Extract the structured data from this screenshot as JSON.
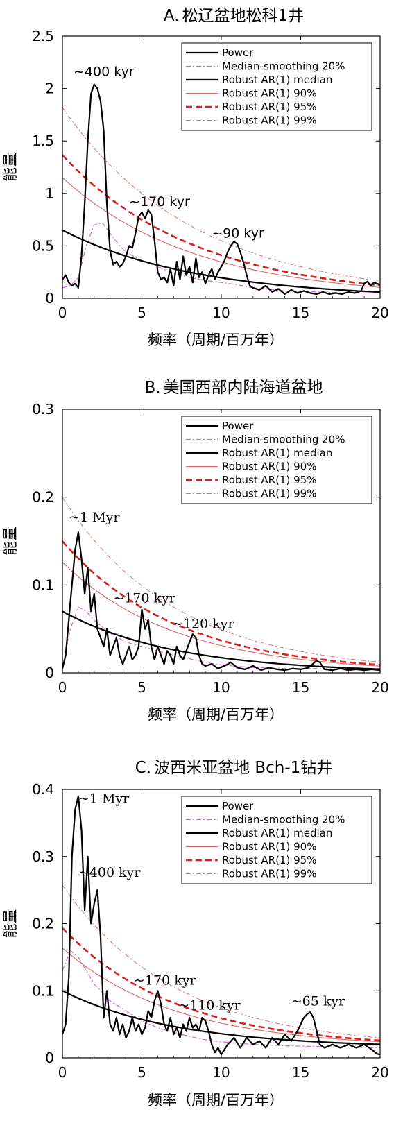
{
  "chart_data": [
    {
      "id": "A",
      "type": "line",
      "title_letter": "A.",
      "title": "松辽盆地松科1井",
      "xlabel": "频率（周期/百万年）",
      "ylabel": "能量",
      "xlim": [
        0,
        20
      ],
      "ylim": [
        0,
        2.5
      ],
      "xticks": [
        0,
        5,
        10,
        15,
        20
      ],
      "yticks": [
        0,
        0.5,
        1,
        1.5,
        2,
        2.5
      ],
      "ytick_labels": [
        "0",
        "0.5",
        "1",
        "1.5",
        "2",
        "2.5"
      ],
      "grid": false,
      "legend_position": "top-right",
      "legend": [
        "Power",
        "Median-smoothing 20%",
        "Robust AR(1) median",
        "Robust AR(1) 90%",
        "Robust AR(1) 95%",
        "Robust AR(1) 99%"
      ],
      "ar_median_at_zero": 0.65,
      "ar_decay": 0.12,
      "ar_floor": 0.0,
      "ar_multipliers": [
        1.77,
        2.1,
        2.8
      ],
      "power": {
        "x": [
          0,
          0.2,
          0.4,
          0.6,
          0.8,
          1.0,
          1.2,
          1.4,
          1.6,
          1.8,
          2.0,
          2.2,
          2.4,
          2.6,
          2.8,
          3.0,
          3.2,
          3.4,
          3.6,
          3.8,
          4.0,
          4.2,
          4.4,
          4.6,
          4.8,
          5.0,
          5.2,
          5.4,
          5.6,
          5.8,
          6.0,
          6.2,
          6.4,
          6.6,
          6.8,
          7.0,
          7.2,
          7.4,
          7.6,
          7.8,
          8.0,
          8.2,
          8.4,
          8.6,
          8.8,
          9.0,
          9.2,
          9.4,
          9.6,
          9.8,
          10.0,
          10.2,
          10.4,
          10.6,
          10.8,
          11.0,
          11.2,
          11.4,
          11.6,
          11.8,
          12.0,
          12.4,
          12.8,
          13.2,
          13.6,
          14.0,
          14.4,
          14.8,
          15.2,
          15.6,
          16.0,
          16.4,
          16.8,
          17.2,
          17.6,
          18.0,
          18.4,
          18.8,
          19.0,
          19.2,
          19.4,
          19.6,
          19.8,
          20.0
        ],
        "y": [
          0.18,
          0.22,
          0.15,
          0.12,
          0.14,
          0.1,
          0.4,
          0.9,
          1.5,
          1.95,
          2.04,
          2.0,
          1.88,
          1.6,
          0.9,
          0.45,
          0.32,
          0.35,
          0.3,
          0.33,
          0.4,
          0.5,
          0.48,
          0.62,
          0.78,
          0.82,
          0.76,
          0.84,
          0.8,
          0.55,
          0.25,
          0.18,
          0.2,
          0.15,
          0.28,
          0.12,
          0.35,
          0.18,
          0.4,
          0.22,
          0.3,
          0.15,
          0.38,
          0.2,
          0.25,
          0.14,
          0.22,
          0.28,
          0.18,
          0.25,
          0.3,
          0.36,
          0.44,
          0.5,
          0.54,
          0.52,
          0.44,
          0.34,
          0.22,
          0.12,
          0.1,
          0.08,
          0.12,
          0.06,
          0.09,
          0.04,
          0.08,
          0.05,
          0.07,
          0.05,
          0.04,
          0.06,
          0.04,
          0.05,
          0.04,
          0.06,
          0.05,
          0.07,
          0.14,
          0.16,
          0.12,
          0.15,
          0.14,
          0.13
        ]
      },
      "median_smoothing": {
        "x": [
          0,
          0.5,
          1.0,
          1.5,
          2.0,
          2.5,
          3.0,
          3.5,
          4.0,
          5.0,
          6.0,
          7.0,
          8.0,
          9.0,
          10.0,
          11.0,
          12.0,
          14.0,
          16.0,
          18.0,
          20.0
        ],
        "y": [
          0.1,
          0.12,
          0.2,
          0.5,
          0.7,
          0.72,
          0.62,
          0.52,
          0.44,
          0.36,
          0.3,
          0.24,
          0.2,
          0.17,
          0.15,
          0.13,
          0.1,
          0.07,
          0.06,
          0.05,
          0.05
        ]
      },
      "annotations": [
        {
          "text": "~400 kyr",
          "x": 0.7,
          "y": 2.12,
          "font": "sans"
        },
        {
          "text": "~170 kyr",
          "x": 4.2,
          "y": 0.88,
          "font": "sans"
        },
        {
          "text": "~90 kyr",
          "x": 9.4,
          "y": 0.58,
          "font": "sans"
        }
      ]
    },
    {
      "id": "B",
      "type": "line",
      "title_letter": "B.",
      "title": "美国西部内陆海道盆地",
      "xlabel": "频率（周期/百万年）",
      "ylabel": "能量",
      "xlim": [
        0,
        20
      ],
      "ylim": [
        0,
        0.3
      ],
      "xticks": [
        0,
        5,
        10,
        15,
        20
      ],
      "yticks": [
        0,
        0.1,
        0.2,
        0.3
      ],
      "ytick_labels": [
        "0",
        "0.1",
        "0.2",
        "0.3"
      ],
      "grid": false,
      "legend_position": "top-right",
      "legend": [
        "Power",
        "Median-smoothing 20%",
        "Robust AR(1) median",
        "Robust AR(1) 90%",
        "Robust AR(1) 95%",
        "Robust AR(1) 99%"
      ],
      "ar_median_at_zero": 0.07,
      "ar_decay": 0.14,
      "ar_floor": 0.0,
      "ar_multipliers": [
        1.8,
        2.14,
        2.85
      ],
      "power": {
        "x": [
          0,
          0.2,
          0.4,
          0.6,
          0.8,
          1.0,
          1.2,
          1.4,
          1.6,
          1.8,
          2.0,
          2.2,
          2.4,
          2.6,
          2.8,
          3.0,
          3.2,
          3.4,
          3.6,
          3.8,
          4.0,
          4.2,
          4.4,
          4.6,
          4.8,
          5.0,
          5.2,
          5.4,
          5.6,
          5.8,
          6.0,
          6.2,
          6.4,
          6.6,
          6.8,
          7.0,
          7.2,
          7.4,
          7.6,
          7.8,
          8.0,
          8.2,
          8.4,
          8.6,
          8.8,
          9.0,
          9.4,
          9.8,
          10.2,
          10.6,
          11.0,
          11.5,
          12.0,
          12.5,
          13.0,
          13.5,
          14.0,
          14.5,
          15.0,
          15.5,
          16.0,
          16.2,
          16.5,
          17.0,
          17.5,
          18.0,
          18.5,
          19.0,
          19.5,
          20.0
        ],
        "y": [
          0.005,
          0.02,
          0.06,
          0.1,
          0.14,
          0.16,
          0.13,
          0.09,
          0.12,
          0.07,
          0.09,
          0.05,
          0.04,
          0.03,
          0.05,
          0.02,
          0.03,
          0.04,
          0.02,
          0.01,
          0.02,
          0.03,
          0.015,
          0.02,
          0.03,
          0.072,
          0.05,
          0.06,
          0.03,
          0.015,
          0.03,
          0.02,
          0.01,
          0.025,
          0.02,
          0.01,
          0.03,
          0.02,
          0.015,
          0.025,
          0.035,
          0.044,
          0.04,
          0.02,
          0.01,
          0.008,
          0.01,
          0.005,
          0.008,
          0.012,
          0.006,
          0.004,
          0.008,
          0.003,
          0.006,
          0.004,
          0.003,
          0.005,
          0.004,
          0.006,
          0.014,
          0.012,
          0.004,
          0.003,
          0.005,
          0.003,
          0.004,
          0.003,
          0.004,
          0.003
        ]
      },
      "median_smoothing": {
        "x": [
          0,
          0.5,
          1.0,
          1.5,
          2.0,
          3.0,
          4.0,
          5.0,
          6.0,
          7.0,
          8.0,
          9.0,
          10.0,
          12.0,
          14.0,
          16.0,
          18.0,
          20.0
        ],
        "y": [
          0.006,
          0.05,
          0.075,
          0.07,
          0.06,
          0.045,
          0.035,
          0.03,
          0.025,
          0.02,
          0.016,
          0.012,
          0.009,
          0.006,
          0.005,
          0.005,
          0.004,
          0.004
        ]
      },
      "annotations": [
        {
          "text": "~1 Myr",
          "x": 0.4,
          "y": 0.172,
          "font": "serif"
        },
        {
          "text": "~170 kyr",
          "x": 3.2,
          "y": 0.08,
          "font": "serif"
        },
        {
          "text": "~120 kyr",
          "x": 6.9,
          "y": 0.051,
          "font": "serif"
        }
      ]
    },
    {
      "id": "C",
      "type": "line",
      "title_letter": "C.",
      "title": "波西米亚盆地 Bch-1钻井",
      "xlabel": "频率（周期/百万年）",
      "ylabel": "能量",
      "xlim": [
        0,
        20
      ],
      "ylim": [
        0,
        0.4
      ],
      "xticks": [
        0,
        5,
        10,
        15,
        20
      ],
      "yticks": [
        0,
        0.1,
        0.2,
        0.3,
        0.4
      ],
      "ytick_labels": [
        "0",
        "0.1",
        "0.2",
        "0.3",
        "0.4"
      ],
      "grid": false,
      "legend_position": "top-right",
      "legend": [
        "Power",
        "Median-smoothing 20%",
        "Robust AR(1) median",
        "Robust AR(1) 90%",
        "Robust AR(1) 95%",
        "Robust AR(1) 99%"
      ],
      "ar_median_at_zero": 0.1,
      "ar_decay": 0.14,
      "ar_floor": 0.015,
      "ar_multipliers": [
        1.75,
        2.1,
        2.85
      ],
      "power": {
        "x": [
          0,
          0.2,
          0.4,
          0.6,
          0.8,
          1.0,
          1.2,
          1.4,
          1.6,
          1.8,
          2.0,
          2.2,
          2.4,
          2.6,
          2.8,
          3.0,
          3.2,
          3.4,
          3.6,
          3.8,
          4.0,
          4.2,
          4.4,
          4.6,
          4.8,
          5.0,
          5.2,
          5.4,
          5.6,
          5.8,
          6.0,
          6.2,
          6.4,
          6.6,
          6.8,
          7.0,
          7.2,
          7.4,
          7.6,
          7.8,
          8.0,
          8.2,
          8.4,
          8.6,
          8.8,
          9.0,
          9.2,
          9.4,
          9.6,
          9.8,
          10.0,
          10.4,
          10.8,
          11.2,
          11.6,
          12.0,
          12.4,
          12.8,
          13.2,
          13.6,
          14.0,
          14.4,
          14.8,
          15.0,
          15.2,
          15.4,
          15.6,
          15.8,
          16.0,
          16.2,
          16.5,
          17.0,
          17.5,
          18.0,
          18.5,
          19.0,
          19.5,
          19.8,
          20.0
        ],
        "y": [
          0.035,
          0.05,
          0.12,
          0.3,
          0.37,
          0.39,
          0.34,
          0.22,
          0.3,
          0.2,
          0.23,
          0.25,
          0.18,
          0.06,
          0.1,
          0.05,
          0.04,
          0.06,
          0.035,
          0.05,
          0.03,
          0.04,
          0.06,
          0.04,
          0.05,
          0.035,
          0.045,
          0.07,
          0.06,
          0.085,
          0.1,
          0.08,
          0.05,
          0.04,
          0.06,
          0.035,
          0.045,
          0.03,
          0.05,
          0.04,
          0.06,
          0.045,
          0.05,
          0.04,
          0.06,
          0.055,
          0.04,
          0.02,
          0.008,
          0.015,
          0.005,
          0.02,
          0.03,
          0.015,
          0.03,
          0.02,
          0.025,
          0.015,
          0.03,
          0.02,
          0.035,
          0.025,
          0.04,
          0.05,
          0.06,
          0.065,
          0.068,
          0.06,
          0.04,
          0.02,
          0.015,
          0.02,
          0.015,
          0.02,
          0.015,
          0.02,
          0.012,
          0.006,
          0.005
        ]
      },
      "median_smoothing": {
        "x": [
          0,
          0.5,
          1.0,
          1.5,
          2.0,
          3.0,
          4.0,
          5.0,
          6.0,
          7.0,
          8.0,
          9.0,
          10.0,
          12.0,
          14.0,
          16.0,
          18.0,
          20.0
        ],
        "y": [
          0.13,
          0.16,
          0.15,
          0.13,
          0.11,
          0.085,
          0.07,
          0.055,
          0.045,
          0.038,
          0.032,
          0.027,
          0.024,
          0.02,
          0.018,
          0.017,
          0.016,
          0.015
        ]
      },
      "annotations": [
        {
          "text": "~1 Myr",
          "x": 1.0,
          "y": 0.38,
          "font": "serif"
        },
        {
          "text": "~400 kyr",
          "x": 1.0,
          "y": 0.27,
          "font": "serif"
        },
        {
          "text": "~170 kyr",
          "x": 4.5,
          "y": 0.109,
          "font": "serif"
        },
        {
          "text": "~110 kyr",
          "x": 7.3,
          "y": 0.072,
          "font": "serif"
        },
        {
          "text": "~65 kyr",
          "x": 14.4,
          "y": 0.078,
          "font": "serif"
        }
      ]
    }
  ],
  "series_styles": {
    "power": {
      "color": "#000000",
      "width": 2.2,
      "dash": ""
    },
    "median_smoothing": {
      "color": "#d16ad6",
      "width": 1.2,
      "dash": "7 3 2 3"
    },
    "ar_median": {
      "color": "#000000",
      "width": 2.2,
      "dash": ""
    },
    "ar_90": {
      "color": "#e36262",
      "width": 1.1,
      "dash": ""
    },
    "ar_95": {
      "color": "#d62020",
      "width": 2.6,
      "dash": "9 5"
    },
    "ar_99": {
      "color": "#d67070",
      "width": 1.0,
      "dash": "7 3 2 3"
    }
  }
}
